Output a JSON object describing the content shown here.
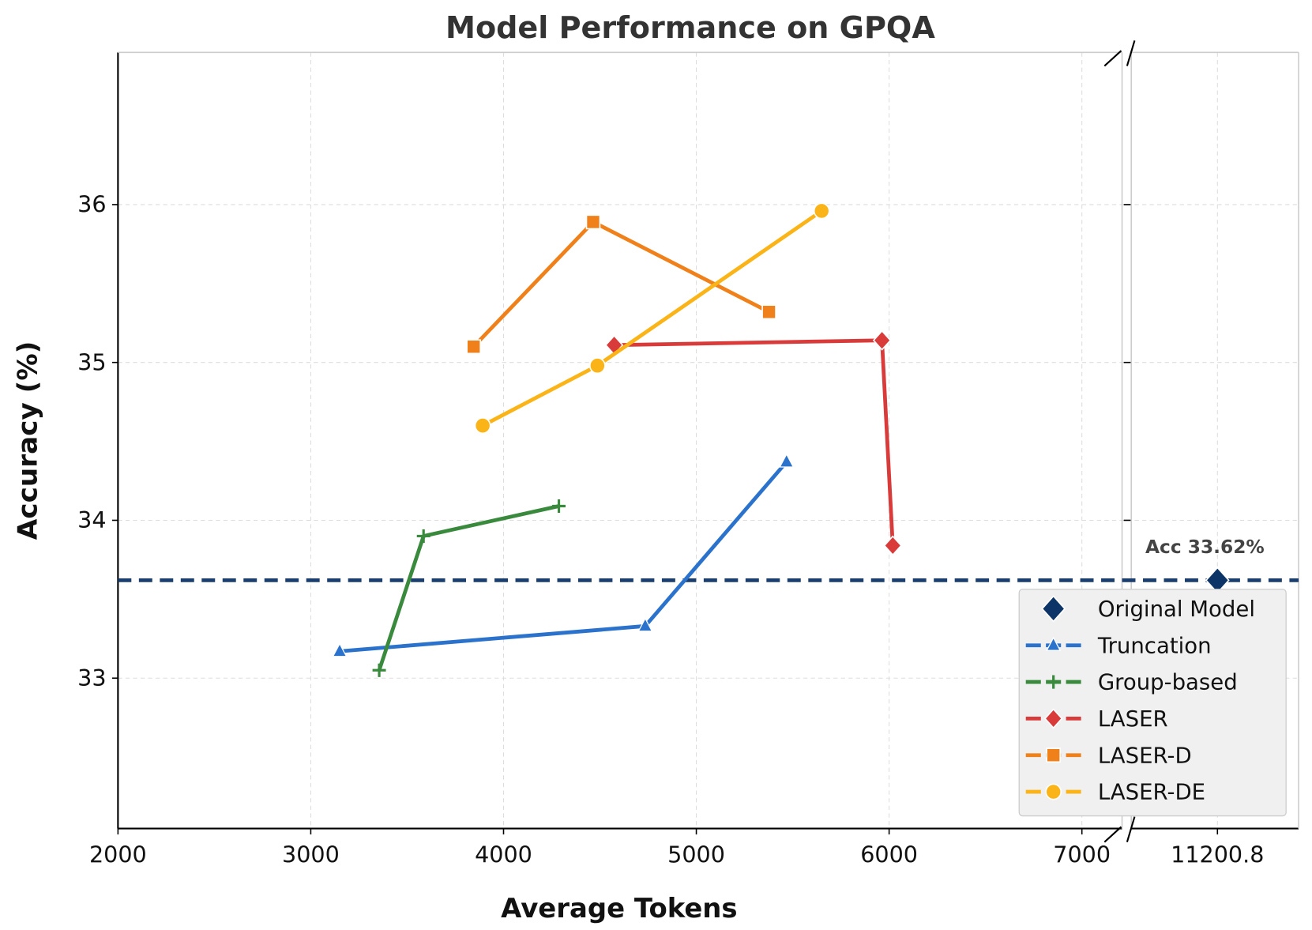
{
  "chart_data": {
    "type": "line",
    "title": "Model Performance on GPQA",
    "xlabel": "Average Tokens",
    "ylabel": "Accuracy (%)",
    "xlim_main": [
      2000,
      7200
    ],
    "x_break": true,
    "x_ticks_main": [
      "2000",
      "3000",
      "4000",
      "5000",
      "6000",
      "7000"
    ],
    "x_ticks_break": [
      "11200.8"
    ],
    "ylim": [
      32.05,
      36.95
    ],
    "y_ticks": [
      "33",
      "34",
      "35",
      "36"
    ],
    "grid": true,
    "legend_position": "lower-right",
    "reference_line": {
      "y": 33.62,
      "label": "Acc 33.62%",
      "color": "#1a3f6e"
    },
    "series": [
      {
        "name": "Original Model",
        "marker": "diamond",
        "color": "#0d3466",
        "points": [
          [
            11200.8,
            33.62
          ]
        ]
      },
      {
        "name": "Truncation",
        "marker": "triangle",
        "color": "#2a72cc",
        "points": [
          [
            3150,
            33.17
          ],
          [
            4735,
            33.33
          ],
          [
            5468,
            34.37
          ]
        ]
      },
      {
        "name": "Group-based",
        "marker": "plus",
        "color": "#3a8a3e",
        "points": [
          [
            3355,
            33.05
          ],
          [
            3585,
            33.9
          ],
          [
            4287,
            34.09
          ]
        ]
      },
      {
        "name": "LASER",
        "marker": "diamond",
        "color": "#d93a3a",
        "points": [
          [
            4574,
            35.11
          ],
          [
            5963,
            35.14
          ],
          [
            6019,
            33.84
          ]
        ]
      },
      {
        "name": "LASER-D",
        "marker": "square",
        "color": "#f08019",
        "points": [
          [
            3845,
            35.1
          ],
          [
            4465,
            35.89
          ],
          [
            5377,
            35.32
          ]
        ]
      },
      {
        "name": "LASER-DE",
        "marker": "circle",
        "color": "#fbb418",
        "points": [
          [
            3892,
            34.6
          ],
          [
            4487,
            34.98
          ],
          [
            5650,
            35.96
          ]
        ]
      }
    ]
  }
}
